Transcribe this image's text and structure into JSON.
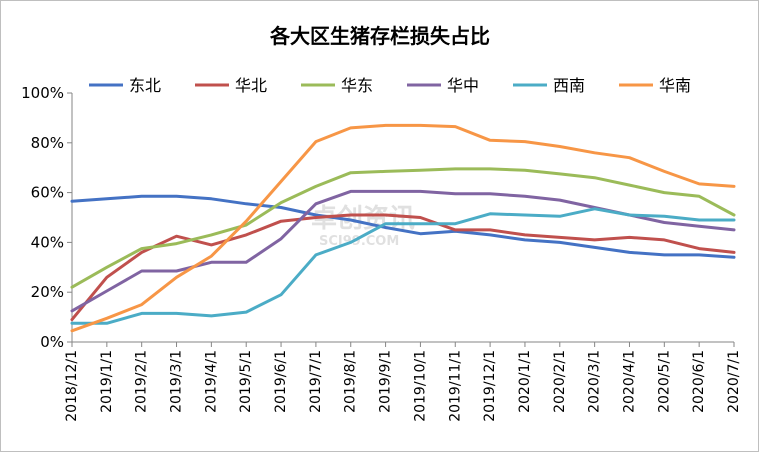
{
  "chart_data": {
    "type": "line",
    "title": "各大区生猪存栏损失占比",
    "xlabel": "",
    "ylabel": "",
    "ylim": [
      0,
      100
    ],
    "yticks": [
      "0%",
      "20%",
      "40%",
      "60%",
      "80%",
      "100%"
    ],
    "ytick_values": [
      0,
      20,
      40,
      60,
      80,
      100
    ],
    "categories": [
      "2018/12/1",
      "2019/1/1",
      "2019/2/1",
      "2019/3/1",
      "2019/4/1",
      "2019/5/1",
      "2019/6/1",
      "2019/7/1",
      "2019/8/1",
      "2019/9/1",
      "2019/10/1",
      "2019/11/1",
      "2019/12/1",
      "2020/1/1",
      "2020/2/1",
      "2020/3/1",
      "2020/4/1",
      "2020/5/1",
      "2020/6/1",
      "2020/7/1"
    ],
    "legend_position": "top",
    "grid": false,
    "series": [
      {
        "name": "东北",
        "color": "#4472C4",
        "values": [
          56.5,
          57.5,
          58.5,
          58.5,
          57.5,
          55.5,
          54,
          51,
          49,
          46,
          43.5,
          44.5,
          43,
          41,
          40,
          38,
          36,
          35,
          35,
          34
        ]
      },
      {
        "name": "华北",
        "color": "#C0504D",
        "values": [
          9,
          26,
          36,
          42.5,
          39,
          43,
          48.5,
          50,
          51,
          51,
          50,
          45,
          45,
          43,
          42,
          41,
          42,
          41,
          37.5,
          36
        ]
      },
      {
        "name": "华东",
        "color": "#9BBB59",
        "values": [
          22,
          30,
          37.5,
          39.5,
          43,
          47,
          56,
          62.5,
          68,
          68.5,
          69,
          69.5,
          69.5,
          69,
          67.5,
          66,
          63,
          60,
          58.5,
          51
        ]
      },
      {
        "name": "华中",
        "color": "#8064A2",
        "values": [
          12.5,
          20.5,
          28.5,
          28.5,
          32,
          32,
          41.5,
          55.5,
          60.5,
          60.5,
          60.5,
          59.5,
          59.5,
          58.5,
          57,
          54,
          51,
          48,
          46.5,
          45
        ]
      },
      {
        "name": "西南",
        "color": "#4BACC6",
        "values": [
          7.5,
          7.5,
          11.5,
          11.5,
          10.5,
          12,
          19,
          35,
          40,
          47.5,
          47.5,
          47.5,
          51.5,
          51,
          50.5,
          53.5,
          51,
          50.5,
          49,
          49
        ]
      },
      {
        "name": "华南",
        "color": "#F79646",
        "values": [
          4.5,
          9.5,
          15,
          26,
          34.5,
          48.5,
          64.5,
          80.5,
          86,
          87,
          87,
          86.5,
          81,
          80.5,
          78.5,
          76,
          74,
          68.5,
          63.5,
          62.5
        ]
      }
    ]
  },
  "watermark": {
    "text_main": "卓创资讯",
    "text_sub": "SCI99.COM"
  }
}
